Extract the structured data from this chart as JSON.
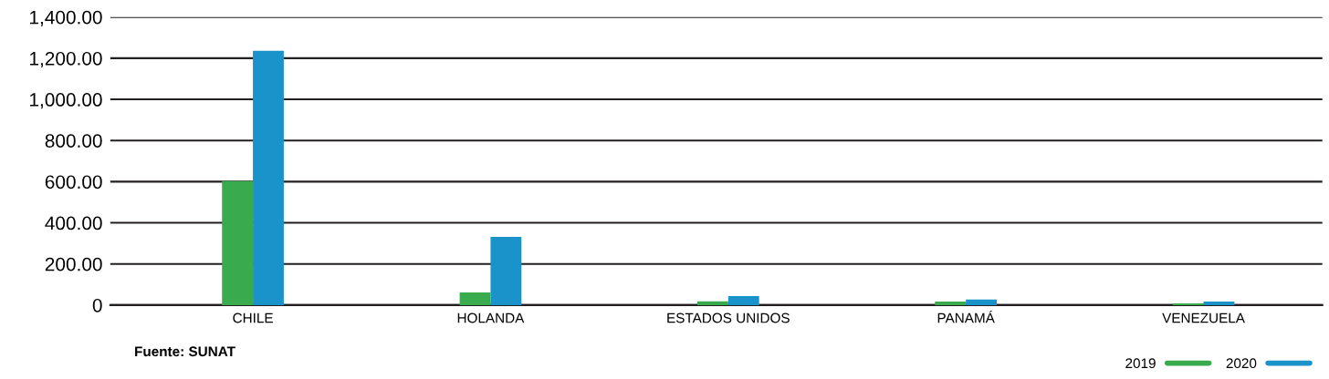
{
  "chart_data": {
    "type": "bar",
    "categories": [
      "CHILE",
      "HOLANDA",
      "ESTADOS UNIDOS",
      "PANAMÁ",
      "VENEZUELA"
    ],
    "series": [
      {
        "name": "2019",
        "color": "#3aaa4f",
        "values": [
          603,
          62,
          18,
          17,
          8
        ]
      },
      {
        "name": "2020",
        "color": "#1a93cb",
        "values": [
          1236,
          332,
          44,
          27,
          17
        ]
      }
    ],
    "ylim": [
      0,
      1400
    ],
    "yticks": [
      {
        "value": 0,
        "label": "0"
      },
      {
        "value": 200,
        "label": "200.00"
      },
      {
        "value": 400,
        "label": "400.00"
      },
      {
        "value": 600,
        "label": "600.00"
      },
      {
        "value": 800,
        "label": "800.00"
      },
      {
        "value": 1000,
        "label": "1,000.00"
      },
      {
        "value": 1200,
        "label": "1,200.00"
      },
      {
        "value": 1400,
        "label": "1,400.00"
      }
    ],
    "grid": "y",
    "legend": "bottom right",
    "annotations": [
      "Fuente: SUNAT"
    ]
  }
}
